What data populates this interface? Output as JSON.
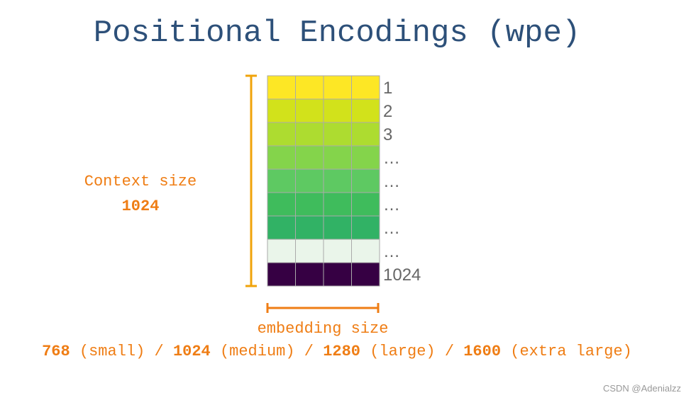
{
  "title": "Positional Encodings (wpe)",
  "context": {
    "label": "Context size",
    "value": "1024"
  },
  "rows": [
    {
      "label": "1",
      "color": "#fde725"
    },
    {
      "label": "2",
      "color": "#d2e21b"
    },
    {
      "label": "3",
      "color": "#addc30"
    },
    {
      "label": "…",
      "color": "#84d44b"
    },
    {
      "label": "…",
      "color": "#5ec962"
    },
    {
      "label": "…",
      "color": "#3fbc5c"
    },
    {
      "label": "…",
      "color": "#31b265"
    },
    {
      "label": "…",
      "color": "#eaf5ea"
    },
    {
      "label": "1024",
      "color": "#360043"
    }
  ],
  "embedding": {
    "label": "embedding size",
    "sizes": [
      {
        "size": "768",
        "name": "(small)"
      },
      {
        "size": "1024",
        "name": "(medium)"
      },
      {
        "size": "1280",
        "name": "(large)"
      },
      {
        "size": "1600",
        "name": "(extra large)"
      }
    ],
    "separator": "/"
  },
  "watermark": "CSDN @Adenialzz"
}
